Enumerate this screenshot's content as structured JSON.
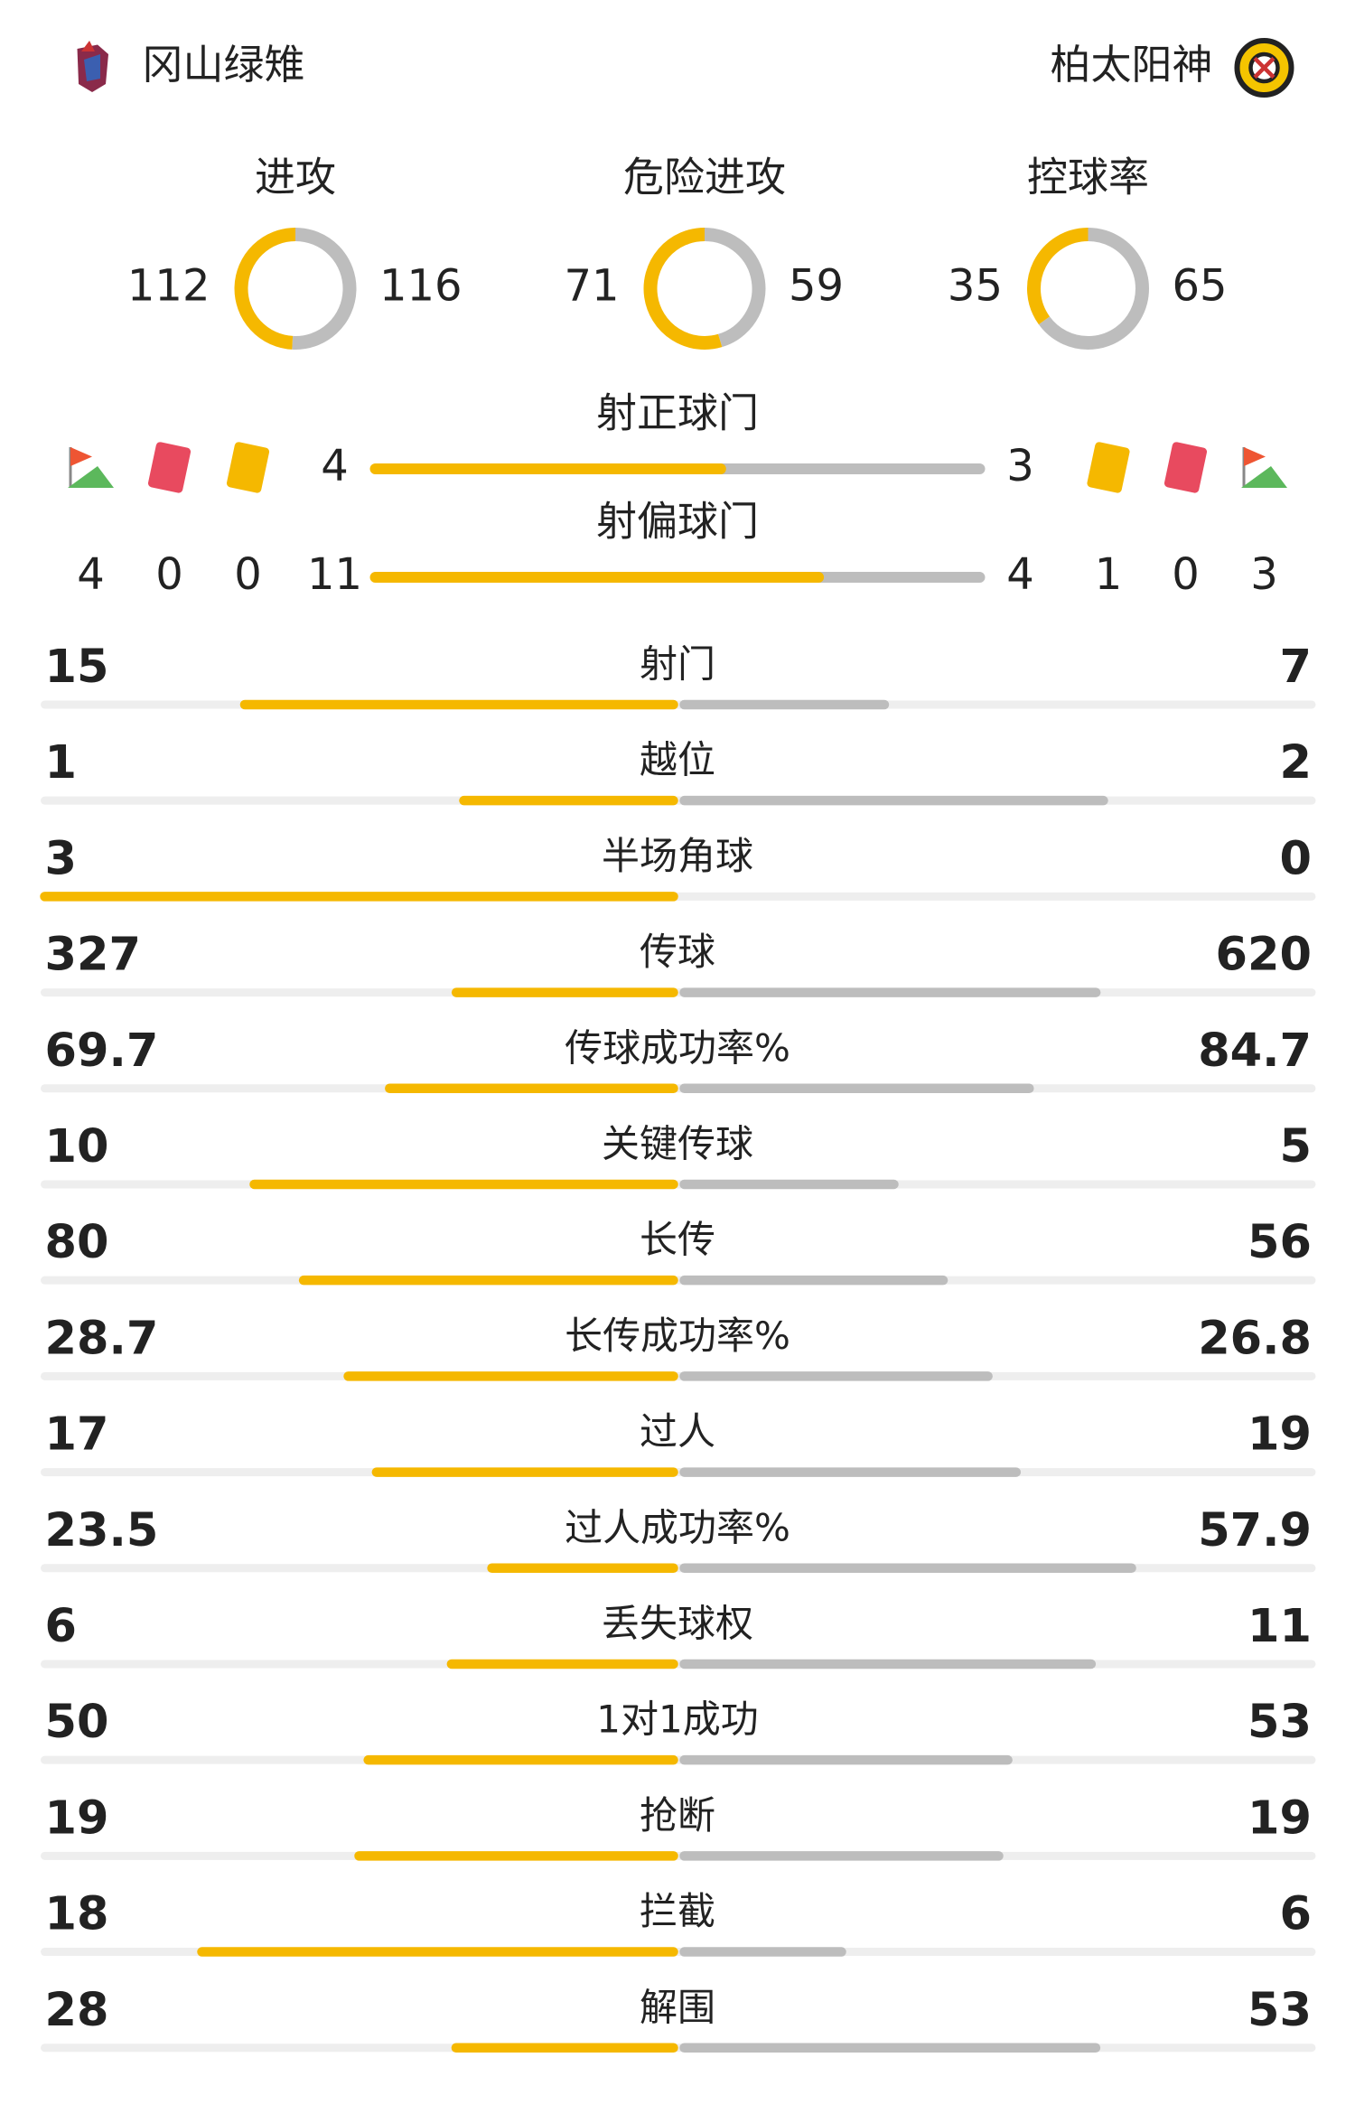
{
  "teams": {
    "home": "冈山绿雉",
    "away": "柏太阳神"
  },
  "summary": [
    {
      "label": "进攻",
      "home": 112,
      "away": 116
    },
    {
      "label": "危险进攻",
      "home": 71,
      "away": 59
    },
    {
      "label": "控球率",
      "home": 35,
      "away": 65
    }
  ],
  "shots": [
    {
      "label": "射正球门",
      "home": 4,
      "away": 3
    },
    {
      "label": "射偏球门",
      "home": 11,
      "away": 4
    }
  ],
  "cards": {
    "home": {
      "corners": 4,
      "red": 0,
      "yellow": 0
    },
    "away": {
      "yellow": 1,
      "red": 0,
      "corners": 3
    }
  },
  "stats": [
    {
      "label": "射门",
      "home": 15,
      "away": 7
    },
    {
      "label": "越位",
      "home": 1,
      "away": 2
    },
    {
      "label": "半场角球",
      "home": 3,
      "away": 0
    },
    {
      "label": "传球",
      "home": 327,
      "away": 620
    },
    {
      "label": "传球成功率%",
      "home": 69.7,
      "away": 84.7
    },
    {
      "label": "关键传球",
      "home": 10,
      "away": 5
    },
    {
      "label": "长传",
      "home": 80,
      "away": 56
    },
    {
      "label": "长传成功率%",
      "home": 28.7,
      "away": 26.8
    },
    {
      "label": "过人",
      "home": 17,
      "away": 19
    },
    {
      "label": "过人成功率%",
      "home": 23.5,
      "away": 57.9
    },
    {
      "label": "丢失球权",
      "home": 6,
      "away": 11
    },
    {
      "label": "1对1成功",
      "home": 50,
      "away": 53
    },
    {
      "label": "抢断",
      "home": 19,
      "away": 19
    },
    {
      "label": "拦截",
      "home": 18,
      "away": 6
    },
    {
      "label": "解围",
      "home": 28,
      "away": 53
    }
  ]
}
